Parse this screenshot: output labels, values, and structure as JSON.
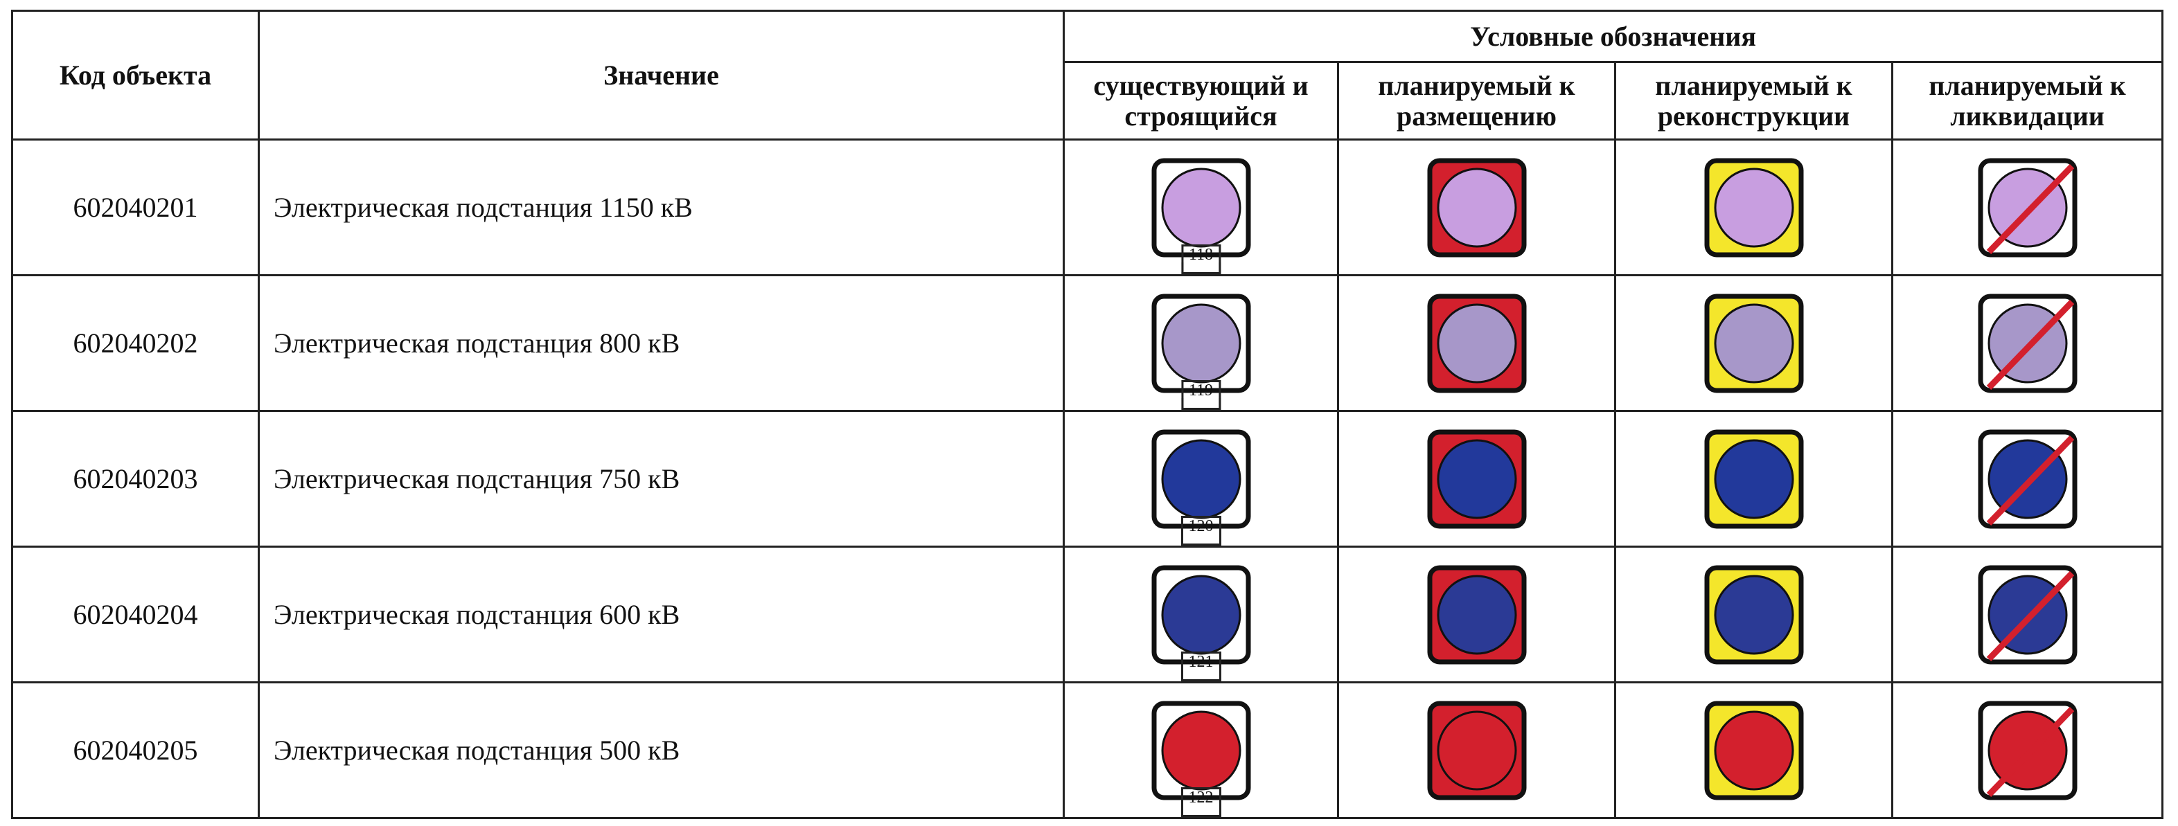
{
  "header": {
    "code": "Код объекта",
    "meaning": "Значение",
    "legend": "Условные обозначения",
    "statuses": [
      "существующий и строящийся",
      "планируемый к размещению",
      "планируемый к реконструкции",
      "планируемый к ликвидации"
    ]
  },
  "rows": [
    {
      "code": "602040201",
      "name": "Электрическая подстанция 1150 кВ",
      "note": "118"
    },
    {
      "code": "602040202",
      "name": "Электрическая подстанция 800 кВ",
      "note": "119"
    },
    {
      "code": "602040203",
      "name": "Электрическая подстанция 750 кВ",
      "note": "120"
    },
    {
      "code": "602040204",
      "name": "Электрическая подстанция 600 кВ",
      "note": "121"
    },
    {
      "code": "602040205",
      "name": "Электрическая подстанция 500 кВ",
      "note": "122"
    }
  ]
}
